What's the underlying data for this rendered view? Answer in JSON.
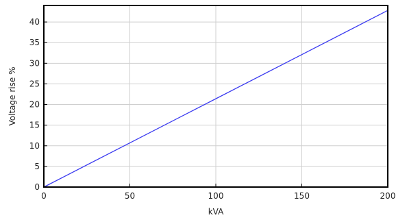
{
  "chart_data": {
    "type": "line",
    "title": "",
    "xlabel": "kVA",
    "ylabel": "Voltage rise %",
    "xlim": [
      0,
      200
    ],
    "ylim": [
      0,
      44
    ],
    "xticks": [
      0,
      50,
      100,
      150,
      200
    ],
    "yticks": [
      0,
      5,
      10,
      15,
      20,
      25,
      30,
      35,
      40
    ],
    "grid": true,
    "series": [
      {
        "color": "#3b3bf0",
        "points": [
          [
            0,
            0
          ],
          [
            50,
            10.7
          ],
          [
            100,
            21.4
          ],
          [
            150,
            32.1
          ],
          [
            200,
            42.8
          ]
        ]
      }
    ]
  }
}
